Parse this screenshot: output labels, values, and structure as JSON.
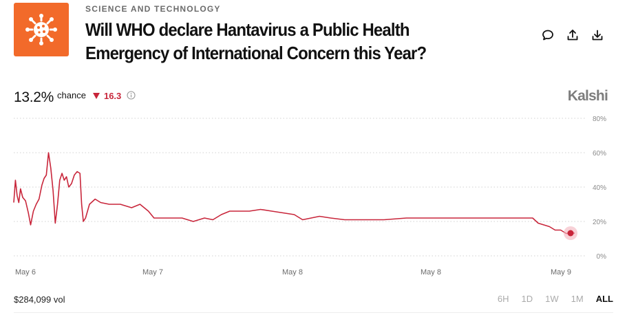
{
  "category": "SCIENCE AND TECHNOLOGY",
  "title": "Will WHO declare Hantavirus a Public Health Emergency of International Concern this Year?",
  "actions": [
    "comment-icon",
    "share-icon",
    "download-icon"
  ],
  "chance": {
    "value": "13.2%",
    "label": "chance",
    "delta": "16.3",
    "delta_direction": "down"
  },
  "brand": "Kalshi",
  "colors": {
    "accent": "#f26a2a",
    "line": "#c8253a",
    "down": "#c8253a"
  },
  "volume": "$284,099 vol",
  "ranges": [
    "6H",
    "1D",
    "1W",
    "1M",
    "ALL"
  ],
  "active_range": "ALL",
  "chart_data": {
    "type": "line",
    "ylim": [
      0,
      80
    ],
    "y_ticks": [
      "0%",
      "20%",
      "40%",
      "60%",
      "80%"
    ],
    "x_ticks": [
      {
        "label": "May 6",
        "t": 0.5
      },
      {
        "label": "May 7",
        "t": 0.5
      },
      {
        "label": "May 8",
        "t": 0.5
      },
      {
        "label": "May 8",
        "t": 0.5
      },
      {
        "label": "May 9",
        "t": 0.5
      }
    ],
    "series": [
      {
        "values": [
          [
            0.0,
            31
          ],
          [
            0.003,
            44
          ],
          [
            0.006,
            35
          ],
          [
            0.009,
            31
          ],
          [
            0.012,
            39
          ],
          [
            0.016,
            34
          ],
          [
            0.021,
            32
          ],
          [
            0.026,
            25
          ],
          [
            0.03,
            18
          ],
          [
            0.035,
            26
          ],
          [
            0.04,
            30
          ],
          [
            0.045,
            33
          ],
          [
            0.05,
            41
          ],
          [
            0.054,
            45
          ],
          [
            0.058,
            47
          ],
          [
            0.062,
            60
          ],
          [
            0.066,
            51
          ],
          [
            0.07,
            38
          ],
          [
            0.074,
            19
          ],
          [
            0.078,
            30
          ],
          [
            0.082,
            44
          ],
          [
            0.086,
            48
          ],
          [
            0.09,
            44
          ],
          [
            0.094,
            46
          ],
          [
            0.098,
            40
          ],
          [
            0.103,
            42
          ],
          [
            0.108,
            47
          ],
          [
            0.113,
            49
          ],
          [
            0.118,
            48
          ],
          [
            0.121,
            30
          ],
          [
            0.124,
            20
          ],
          [
            0.128,
            22
          ],
          [
            0.135,
            30
          ],
          [
            0.145,
            33
          ],
          [
            0.155,
            31
          ],
          [
            0.17,
            30
          ],
          [
            0.19,
            30
          ],
          [
            0.21,
            28
          ],
          [
            0.225,
            30
          ],
          [
            0.24,
            26
          ],
          [
            0.25,
            22
          ],
          [
            0.28,
            22
          ],
          [
            0.3,
            22
          ],
          [
            0.32,
            20
          ],
          [
            0.34,
            22
          ],
          [
            0.355,
            21
          ],
          [
            0.37,
            24
          ],
          [
            0.385,
            26
          ],
          [
            0.4,
            26
          ],
          [
            0.42,
            26
          ],
          [
            0.44,
            27
          ],
          [
            0.46,
            26
          ],
          [
            0.48,
            25
          ],
          [
            0.5,
            24
          ],
          [
            0.515,
            21
          ],
          [
            0.53,
            22
          ],
          [
            0.545,
            23
          ],
          [
            0.565,
            22
          ],
          [
            0.59,
            21
          ],
          [
            0.62,
            21
          ],
          [
            0.66,
            21
          ],
          [
            0.7,
            22
          ],
          [
            0.74,
            22
          ],
          [
            0.78,
            22
          ],
          [
            0.82,
            22
          ],
          [
            0.86,
            22
          ],
          [
            0.9,
            22
          ],
          [
            0.925,
            22
          ],
          [
            0.935,
            19
          ],
          [
            0.945,
            18
          ],
          [
            0.955,
            17
          ],
          [
            0.965,
            15
          ],
          [
            0.975,
            15
          ],
          [
            0.985,
            13
          ],
          [
            0.995,
            13.2
          ],
          [
            1.0,
            13.2
          ]
        ]
      }
    ]
  }
}
